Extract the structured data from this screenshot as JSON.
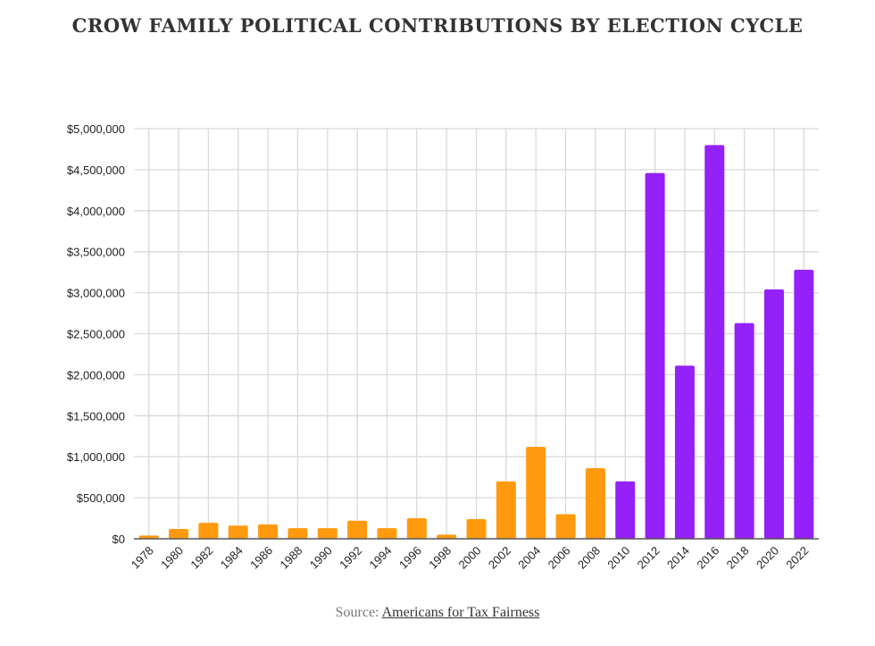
{
  "title": "CROW FAMILY POLITICAL CONTRIBUTIONS BY ELECTION CYCLE",
  "source": {
    "prefix": "Source:",
    "link": "Americans for Tax Fairness"
  },
  "chart_data": {
    "type": "bar",
    "title": "CROW FAMILY POLITICAL CONTRIBUTIONS BY ELECTION CYCLE",
    "xlabel": "",
    "ylabel": "",
    "ylim": [
      0,
      5000000
    ],
    "grid": true,
    "yticks": [
      "$0",
      "$500,000",
      "$1,000,000",
      "$1,500,000",
      "$2,000,000",
      "$2,500,000",
      "$3,000,000",
      "$3,500,000",
      "$4,000,000",
      "$4,500,000",
      "$5,000,000"
    ],
    "categories": [
      "1978",
      "1980",
      "1982",
      "1984",
      "1986",
      "1988",
      "1990",
      "1992",
      "1994",
      "1996",
      "1998",
      "2000",
      "2002",
      "2004",
      "2006",
      "2008",
      "2010",
      "2012",
      "2014",
      "2016",
      "2018",
      "2020",
      "2022"
    ],
    "values": [
      40000,
      120000,
      195000,
      160000,
      175000,
      130000,
      130000,
      220000,
      130000,
      250000,
      50000,
      240000,
      700000,
      1120000,
      300000,
      860000,
      700000,
      4460000,
      2110000,
      4800000,
      2630000,
      3040000,
      3280000
    ],
    "colors": {
      "before_2010": "#FF9A0E",
      "from_2010": "#9421F7"
    }
  }
}
